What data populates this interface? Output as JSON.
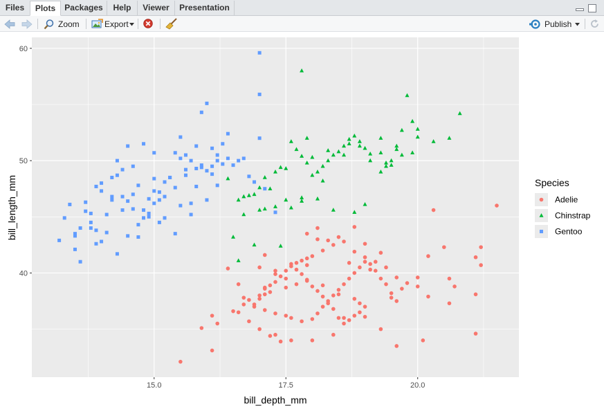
{
  "tabs": [
    {
      "label": "Files",
      "active": false
    },
    {
      "label": "Plots",
      "active": true
    },
    {
      "label": "Packages",
      "active": false
    },
    {
      "label": "Help",
      "active": false
    },
    {
      "label": "Viewer",
      "active": false
    },
    {
      "label": "Presentation",
      "active": false
    }
  ],
  "toolbar": {
    "zoom_label": "Zoom",
    "export_label": "Export",
    "publish_label": "Publish"
  },
  "chart_data": {
    "type": "scatter",
    "title": "",
    "xlabel": "bill_depth_mm",
    "ylabel": "bill_length_mm",
    "xlim": [
      13.1,
      21.5
    ],
    "ylim": [
      32.1,
      59.6
    ],
    "xticks": [
      15.0,
      17.5,
      20.0
    ],
    "yticks": [
      40,
      50,
      60
    ],
    "grid": true,
    "legend": {
      "title": "Species",
      "placement": "right"
    },
    "series": [
      {
        "name": "Adelie",
        "color": "#F8766D",
        "marker": "circle",
        "x": [
          15.5,
          16.1,
          15.9,
          16.2,
          16.1,
          16.6,
          16.9,
          16.8,
          16.7,
          17.1,
          17.1,
          17.2,
          17.3,
          17.5,
          17.4,
          17.3,
          17.0,
          17.6,
          17.6,
          17.7,
          17.8,
          17.9,
          17.9,
          17.7,
          17.5,
          17.2,
          17.0,
          16.9,
          17.1,
          17.3,
          17.5,
          17.6,
          17.8,
          18.0,
          18.1,
          18.2,
          18.3,
          18.4,
          18.5,
          18.6,
          18.7,
          18.8,
          18.9,
          19.0,
          19.1,
          19.2,
          19.3,
          19.4,
          19.5,
          19.6,
          19.0,
          18.9,
          18.8,
          18.7,
          18.6,
          18.5,
          18.4,
          18.3,
          18.2,
          18.1,
          18.0,
          17.9,
          17.8,
          17.7,
          18.0,
          18.2,
          18.4,
          18.6,
          18.8,
          19.0,
          19.2,
          19.4,
          19.6,
          19.8,
          20.0,
          20.2,
          20.3,
          20.5,
          20.6,
          20.7,
          21.1,
          21.2,
          21.1,
          21.2,
          21.5,
          18.5,
          18.3,
          17.9,
          18.1,
          18.7,
          19.1,
          19.3,
          18.9,
          18.6,
          18.4,
          17.6,
          17.4,
          17.2,
          17.0,
          16.8,
          16.5,
          16.7,
          17.1,
          17.3,
          17.5,
          17.9,
          18.2,
          18.5,
          18.8,
          19.0,
          19.3,
          19.6,
          20.1,
          20.6,
          21.1,
          19.7,
          20.0,
          20.2,
          19.5,
          18.0,
          17.3,
          17.0,
          16.6,
          16.4,
          17.1,
          19.0,
          18.8,
          18.1
        ],
        "y": [
          32.1,
          33.1,
          35.1,
          35.5,
          36.2,
          36.5,
          37.0,
          37.6,
          37.8,
          38.1,
          38.6,
          38.9,
          39.2,
          39.5,
          39.7,
          40.2,
          40.5,
          40.6,
          40.8,
          40.9,
          41.1,
          41.3,
          40.7,
          39.0,
          38.7,
          38.3,
          37.7,
          37.2,
          36.7,
          36.4,
          36.2,
          36.0,
          35.7,
          35.9,
          36.4,
          37.0,
          37.5,
          38.0,
          38.5,
          39.0,
          39.5,
          40.0,
          40.5,
          41.0,
          40.8,
          40.2,
          39.5,
          39.0,
          38.2,
          37.5,
          37.0,
          36.5,
          36.2,
          35.8,
          35.5,
          36.0,
          36.8,
          37.3,
          37.9,
          38.4,
          38.8,
          39.4,
          39.9,
          40.3,
          41.5,
          42.0,
          42.5,
          42.8,
          41.9,
          41.4,
          41.0,
          40.5,
          39.6,
          39.1,
          38.8,
          41.5,
          45.6,
          42.3,
          39.5,
          38.8,
          38.1,
          40.7,
          41.4,
          42.3,
          46.0,
          43.2,
          42.9,
          43.5,
          44.0,
          40.9,
          40.3,
          41.8,
          37.3,
          36.0,
          34.5,
          34.0,
          33.9,
          34.4,
          35.0,
          35.7,
          36.6,
          37.2,
          38.7,
          39.9,
          40.2,
          39.3,
          38.9,
          38.1,
          37.7,
          36.1,
          35.0,
          33.5,
          34.0,
          37.3,
          34.6,
          38.6,
          39.6,
          37.9,
          37.8,
          34.0,
          34.5,
          38.0,
          39.0,
          40.4,
          41.6,
          42.6,
          44.1,
          43.0
        ]
      },
      {
        "name": "Chinstrap",
        "color": "#00BA38",
        "marker": "triangle",
        "x": [
          17.8,
          19.8,
          20.8,
          19.9,
          20.0,
          20.6,
          20.3,
          19.6,
          19.7,
          19.5,
          19.4,
          19.3,
          19.1,
          19.0,
          18.9,
          18.8,
          18.7,
          18.6,
          18.5,
          18.4,
          18.3,
          18.2,
          18.1,
          18.0,
          17.9,
          17.8,
          17.7,
          17.6,
          17.4,
          17.3,
          17.1,
          17.0,
          16.9,
          16.8,
          16.7,
          16.6,
          16.4,
          17.2,
          17.5,
          17.8,
          18.1,
          18.4,
          18.8,
          19.0,
          19.3,
          19.6,
          19.9,
          20.0,
          19.5,
          19.1,
          18.7,
          18.3,
          17.9,
          17.5,
          17.1,
          16.7,
          16.5,
          16.9,
          17.4,
          17.6,
          18.6,
          19.4,
          18.0,
          16.6,
          17.0,
          17.3,
          17.8,
          18.2,
          18.9,
          19.3,
          19.7
        ],
        "y": [
          58.0,
          55.8,
          54.2,
          53.5,
          52.8,
          52.0,
          51.7,
          51.3,
          50.5,
          50.0,
          49.5,
          49.0,
          50.6,
          51.1,
          51.7,
          52.2,
          51.9,
          51.3,
          50.8,
          50.5,
          50.0,
          49.5,
          49.0,
          48.7,
          49.8,
          50.4,
          51.0,
          51.7,
          49.4,
          49.0,
          48.5,
          47.6,
          47.0,
          46.9,
          46.8,
          46.5,
          48.4,
          47.5,
          46.5,
          46.4,
          46.6,
          45.6,
          45.4,
          46.1,
          50.7,
          51.0,
          50.7,
          52.1,
          49.6,
          50.0,
          51.5,
          50.9,
          52.0,
          49.3,
          45.7,
          45.2,
          43.2,
          42.5,
          42.4,
          45.8,
          50.5,
          49.8,
          50.3,
          41.1,
          45.6,
          45.9,
          46.7,
          48.2,
          51.3,
          52.0,
          52.7
        ]
      },
      {
        "name": "Gentoo",
        "color": "#619CFF",
        "marker": "square",
        "x": [
          13.2,
          13.4,
          13.5,
          13.7,
          13.8,
          13.9,
          14.0,
          14.1,
          14.2,
          14.3,
          14.4,
          14.5,
          14.6,
          14.7,
          14.8,
          14.9,
          15.0,
          15.1,
          15.2,
          15.3,
          15.4,
          15.5,
          15.6,
          15.7,
          15.8,
          15.9,
          16.0,
          16.1,
          16.2,
          16.3,
          16.4,
          16.5,
          16.6,
          16.7,
          16.8,
          16.9,
          17.0,
          17.1,
          17.3,
          17.0,
          17.0,
          16.0,
          15.9,
          14.5,
          14.3,
          14.0,
          13.8,
          13.6,
          13.5,
          13.3,
          13.9,
          14.1,
          14.4,
          14.7,
          15.0,
          15.2,
          15.5,
          15.7,
          15.9,
          16.2,
          16.4,
          15.8,
          15.4,
          15.0,
          14.6,
          14.2,
          13.7,
          14.8,
          15.1,
          15.3,
          15.6,
          15.8,
          16.1,
          16.3,
          15.0,
          14.5,
          14.0,
          13.9,
          14.3,
          14.6,
          14.9,
          15.2,
          15.4,
          15.7,
          16.0,
          16.2,
          14.9,
          14.2,
          13.6,
          14.7,
          15.1,
          15.6,
          16.1,
          15.5,
          14.8,
          14.4,
          13.8,
          13.5
        ],
        "y": [
          42.9,
          46.1,
          43.3,
          45.5,
          44.0,
          47.7,
          47.3,
          45.2,
          46.5,
          48.7,
          49.2,
          46.4,
          47.0,
          47.8,
          44.9,
          46.6,
          48.4,
          47.2,
          46.8,
          48.5,
          47.6,
          46.0,
          48.7,
          46.2,
          47.7,
          49.6,
          49.1,
          48.8,
          50.0,
          51.5,
          50.2,
          49.6,
          50.0,
          50.2,
          48.6,
          48.1,
          52.0,
          47.5,
          45.4,
          59.6,
          55.9,
          55.1,
          54.3,
          51.3,
          50.0,
          48.0,
          45.3,
          44.0,
          42.1,
          44.9,
          42.6,
          43.6,
          45.6,
          44.3,
          46.2,
          48.1,
          50.2,
          50.0,
          49.4,
          50.5,
          52.4,
          49.3,
          50.7,
          50.7,
          49.5,
          48.5,
          46.3,
          45.6,
          44.5,
          48.5,
          50.5,
          51.3,
          49.5,
          49.7,
          47.3,
          43.3,
          42.8,
          43.8,
          41.7,
          45.7,
          45.3,
          44.9,
          43.5,
          45.2,
          46.5,
          47.8,
          45.0,
          46.8,
          41.0,
          43.2,
          46.5,
          49.2,
          51.1,
          52.1,
          51.5,
          46.8,
          44.5,
          43.5
        ]
      }
    ]
  }
}
